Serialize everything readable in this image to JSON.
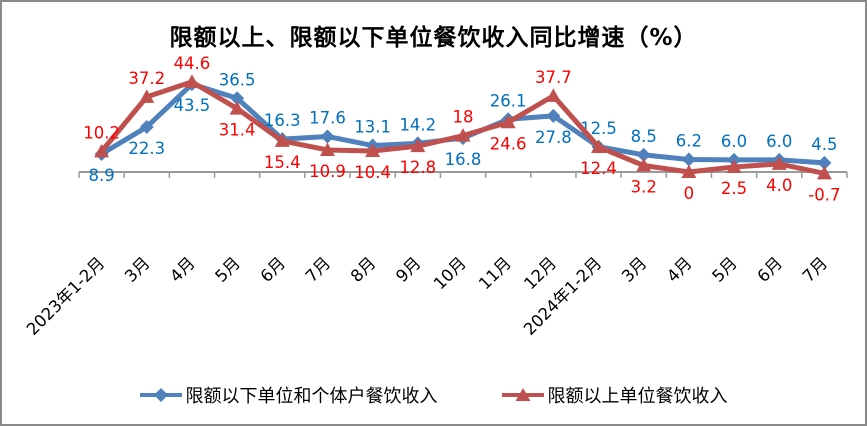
{
  "window": {
    "background_color": "#ffffff",
    "border_color": "#8a8a8a"
  },
  "chart_data": {
    "type": "line",
    "title": "限额以上、限额以下单位餐饮收入同比增速（%）",
    "xlabel": "",
    "ylabel": "",
    "unit": "%",
    "grid": false,
    "legend_position": "bottom",
    "x_tick_rotation": 45,
    "ylim": [
      -10,
      50
    ],
    "axis_color": "#9a9a9a",
    "categories": [
      "2023年1-2月",
      "3月",
      "4月",
      "5月",
      "6月",
      "7月",
      "8月",
      "9月",
      "10月",
      "11月",
      "12月",
      "2024年1-2月",
      "3月",
      "4月",
      "5月",
      "6月",
      "7月"
    ],
    "series": [
      {
        "name": "限额以下单位和个体户餐饮收入",
        "marker": "diamond",
        "line_color": "#4f81bd",
        "label_color": "#0070c0",
        "values": [
          8.9,
          22.3,
          43.5,
          36.5,
          16.3,
          17.6,
          13.1,
          14.2,
          16.8,
          26.1,
          27.8,
          12.5,
          8.5,
          6.2,
          6.0,
          6.0,
          4.5
        ],
        "labels": [
          "8.9",
          "22.3",
          "43.5",
          "36.5",
          "16.3",
          "17.6",
          "13.1",
          "14.2",
          "16.8",
          "26.1",
          "27.8",
          "12.5",
          "8.5",
          "6.2",
          "6.0",
          "6.0",
          "4.5"
        ],
        "label_positions": [
          "below",
          "below",
          "below",
          "above",
          "above",
          "above",
          "above",
          "above",
          "below",
          "above",
          "below",
          "above",
          "above",
          "above",
          "above",
          "above",
          "above"
        ]
      },
      {
        "name": "限额以上单位餐饮收入",
        "marker": "triangle",
        "line_color": "#c0504d",
        "label_color": "#ff0000",
        "values": [
          10.2,
          37.2,
          44.6,
          31.4,
          15.4,
          10.9,
          10.4,
          12.8,
          18,
          24.6,
          37.7,
          12.4,
          3.2,
          0,
          2.5,
          4.0,
          -0.7
        ],
        "labels": [
          "10.2",
          "37.2",
          "44.6",
          "31.4",
          "15.4",
          "10.9",
          "10.4",
          "12.8",
          "18",
          "24.6",
          "37.7",
          "12.4",
          "3.2",
          "0",
          "2.5",
          "4.0",
          "-0.7"
        ],
        "label_positions": [
          "above",
          "above",
          "above",
          "below",
          "below",
          "below",
          "below",
          "below",
          "above",
          "below",
          "above",
          "below",
          "below",
          "below",
          "below",
          "below",
          "below"
        ]
      }
    ]
  }
}
